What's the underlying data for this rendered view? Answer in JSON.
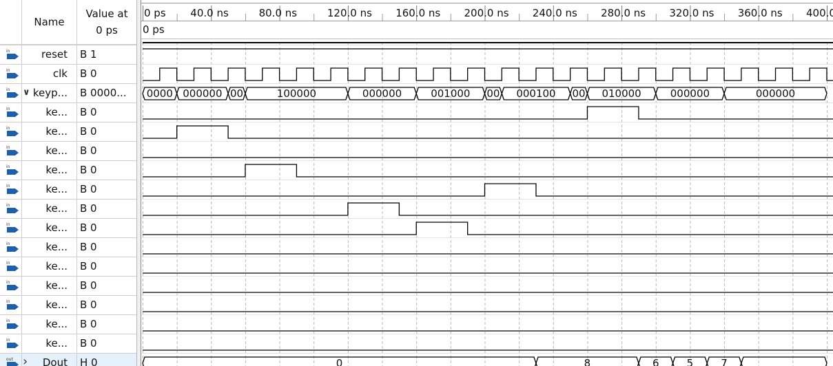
{
  "header": {
    "name_col": "Name",
    "value_col_line1": "Value at",
    "value_col_line2": "0 ps"
  },
  "cursor_label": "0 ps",
  "time_ticks": [
    "0 ps",
    "40.0 ns",
    "80.0 ns",
    "120.0 ns",
    "160.0 ns",
    "200.0 ns",
    "240.0 ns",
    "280.0 ns",
    "320.0 ns",
    "360.0 ns",
    "400.0 ns"
  ],
  "signals": [
    {
      "name": "reset",
      "value": "B 1",
      "dir": "in",
      "kind": "const",
      "level": 1
    },
    {
      "name": "clk",
      "value": "B 0",
      "dir": "in",
      "kind": "clock"
    },
    {
      "name": "keyp...",
      "value": "B 0000...",
      "dir": "in",
      "kind": "bus",
      "expanded": true,
      "segments": [
        {
          "from": 0,
          "to": 20,
          "text": "0000"
        },
        {
          "from": 20,
          "to": 50,
          "text": "000000"
        },
        {
          "from": 50,
          "to": 60,
          "text": "00"
        },
        {
          "from": 60,
          "to": 120,
          "text": "100000"
        },
        {
          "from": 120,
          "to": 160,
          "text": "000000"
        },
        {
          "from": 160,
          "to": 200,
          "text": "001000"
        },
        {
          "from": 200,
          "to": 210,
          "text": "00"
        },
        {
          "from": 210,
          "to": 250,
          "text": "000100"
        },
        {
          "from": 250,
          "to": 260,
          "text": "00"
        },
        {
          "from": 260,
          "to": 300,
          "text": "010000"
        },
        {
          "from": 300,
          "to": 340,
          "text": "000000"
        },
        {
          "from": 340,
          "to": 400,
          "text": "000000"
        }
      ]
    },
    {
      "name": "ke...",
      "value": "B 0",
      "dir": "in",
      "kind": "pulse",
      "pulses": [
        [
          260,
          290
        ]
      ]
    },
    {
      "name": "ke...",
      "value": "B 0",
      "dir": "in",
      "kind": "pulse",
      "pulses": [
        [
          20,
          50
        ]
      ]
    },
    {
      "name": "ke...",
      "value": "B 0",
      "dir": "in",
      "kind": "pulse",
      "pulses": []
    },
    {
      "name": "ke...",
      "value": "B 0",
      "dir": "in",
      "kind": "pulse",
      "pulses": [
        [
          60,
          90
        ]
      ]
    },
    {
      "name": "ke...",
      "value": "B 0",
      "dir": "in",
      "kind": "pulse",
      "pulses": [
        [
          200,
          230
        ]
      ]
    },
    {
      "name": "ke...",
      "value": "B 0",
      "dir": "in",
      "kind": "pulse",
      "pulses": [
        [
          120,
          150
        ]
      ]
    },
    {
      "name": "ke...",
      "value": "B 0",
      "dir": "in",
      "kind": "pulse",
      "pulses": [
        [
          160,
          190
        ]
      ]
    },
    {
      "name": "ke...",
      "value": "B 0",
      "dir": "in",
      "kind": "pulse",
      "pulses": []
    },
    {
      "name": "ke...",
      "value": "B 0",
      "dir": "in",
      "kind": "pulse",
      "pulses": []
    },
    {
      "name": "ke...",
      "value": "B 0",
      "dir": "in",
      "kind": "pulse",
      "pulses": []
    },
    {
      "name": "ke...",
      "value": "B 0",
      "dir": "in",
      "kind": "pulse",
      "pulses": []
    },
    {
      "name": "ke...",
      "value": "B 0",
      "dir": "in",
      "kind": "pulse",
      "pulses": []
    },
    {
      "name": "ke...",
      "value": "B 0",
      "dir": "in",
      "kind": "pulse",
      "pulses": []
    },
    {
      "name": "Dout",
      "value": "H 0",
      "dir": "out",
      "kind": "bus",
      "expanded": false,
      "selected": true,
      "segments": [
        {
          "from": 0,
          "to": 230,
          "text": "0"
        },
        {
          "from": 230,
          "to": 290,
          "text": "8"
        },
        {
          "from": 290,
          "to": 310,
          "text": "6"
        },
        {
          "from": 310,
          "to": 330,
          "text": "5"
        },
        {
          "from": 330,
          "to": 350,
          "text": "7"
        },
        {
          "from": 350,
          "to": 400,
          "text": ""
        }
      ]
    }
  ],
  "clock": {
    "period_ns": 20,
    "first_rise_ns": 10
  },
  "colors": {
    "in_icon": "#1f5fa8",
    "out_icon": "#1f5fa8",
    "grid": "#c0c0c0",
    "wave": "#000000",
    "select": "#e5f1fb"
  }
}
